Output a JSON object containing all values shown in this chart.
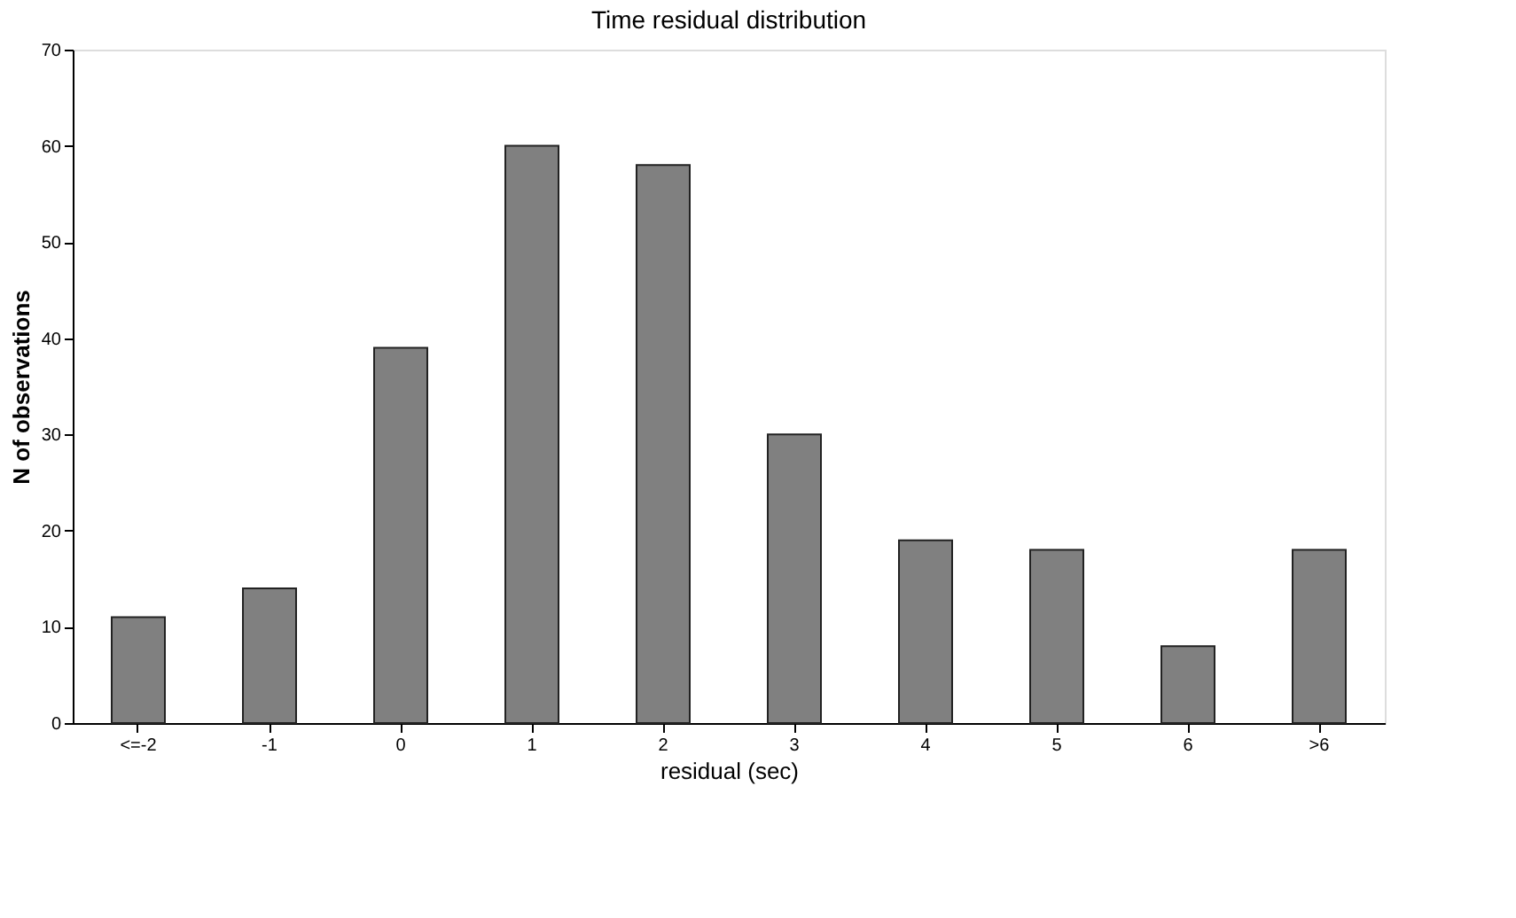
{
  "chart_data": {
    "type": "bar",
    "title": "Time residual distribution",
    "xlabel": "residual (sec)",
    "ylabel": "N of observations",
    "categories": [
      "<=-2",
      "-1",
      "0",
      "1",
      "2",
      "3",
      "4",
      "5",
      "6",
      ">6"
    ],
    "values": [
      11,
      14,
      39,
      60,
      58,
      30,
      19,
      18,
      8,
      18
    ],
    "color": "#808080",
    "ylim": [
      0,
      70
    ],
    "yticks": [
      0,
      10,
      20,
      30,
      40,
      50,
      60,
      70
    ],
    "grid": false
  }
}
